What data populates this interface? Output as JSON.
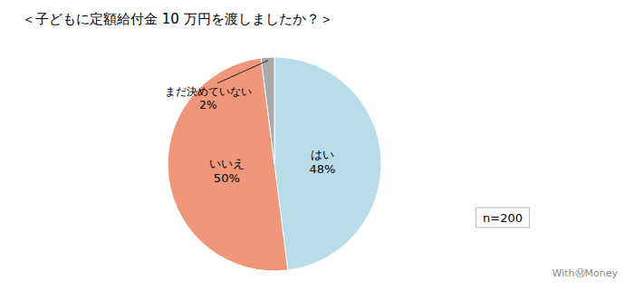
{
  "chart_data": {
    "type": "pie",
    "title": "＜子どもに定額給付金 10 万円を渡しましたか？＞",
    "categories": [
      "はい",
      "いいえ",
      "まだ決めていない"
    ],
    "values": [
      48,
      50,
      2
    ],
    "value_labels": [
      "48%",
      "50%",
      "2%"
    ],
    "colors": [
      "#b8dce8",
      "#f0967a",
      "#aaaaaa"
    ],
    "data_labels": true,
    "annotations": [
      "n=200",
      "WithⓂMoney"
    ]
  }
}
